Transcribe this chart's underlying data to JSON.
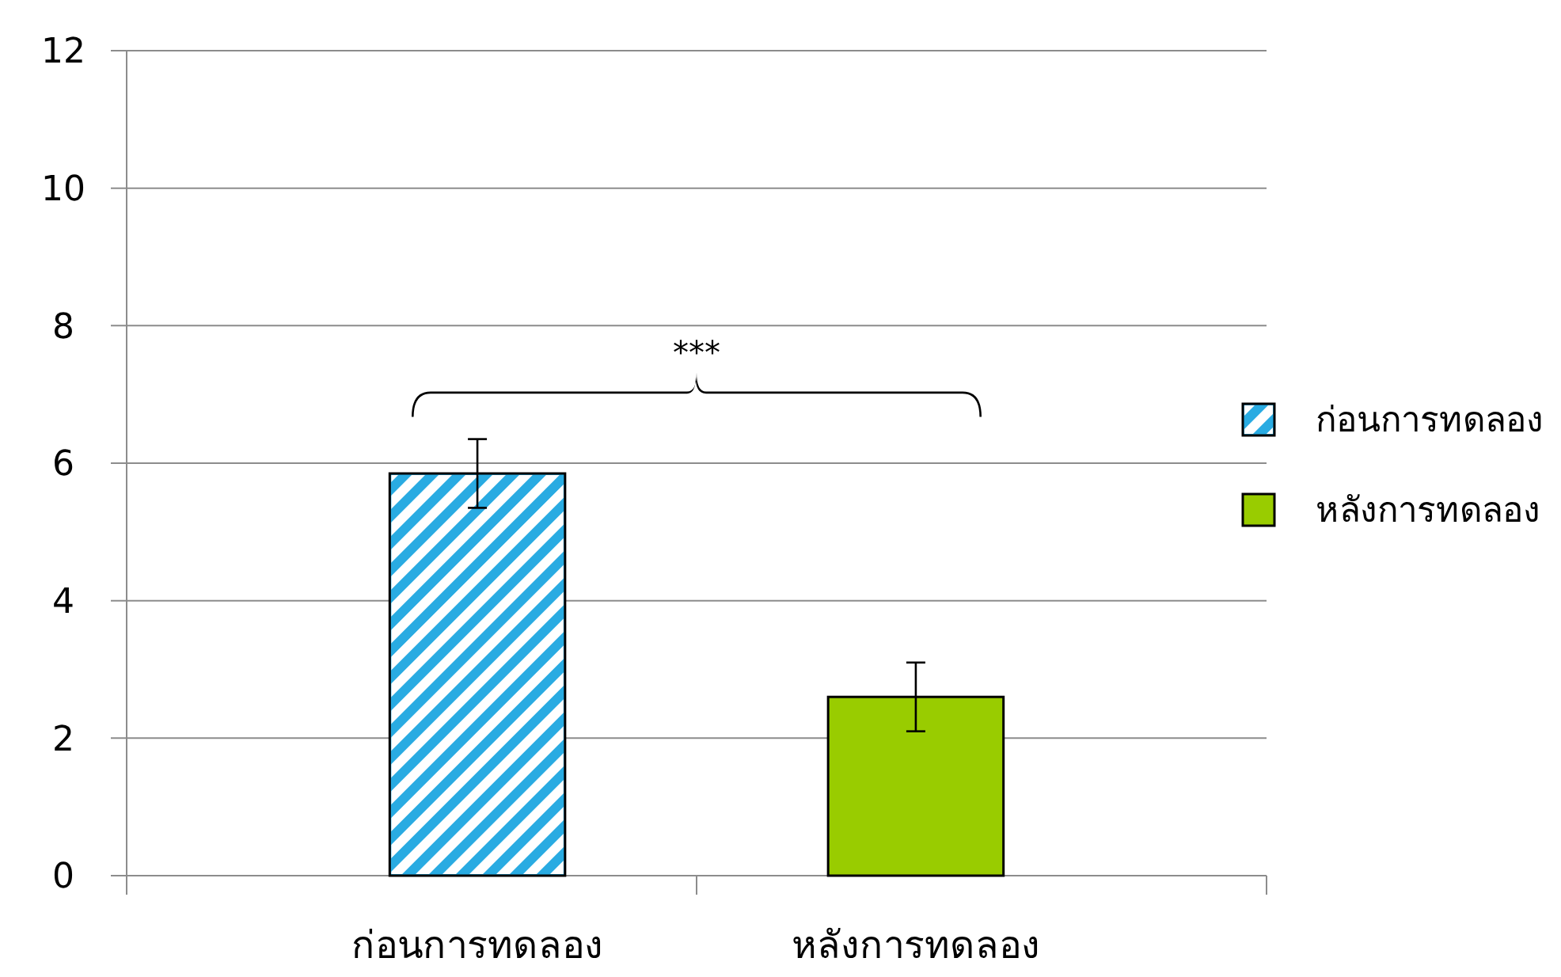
{
  "chart_data": {
    "type": "bar",
    "categories": [
      "ก่อนการทดลอง",
      "หลังการทดลอง"
    ],
    "series": [
      {
        "name": "ก่อนการทดลอง",
        "color": "#29abe2",
        "values": [
          5.85,
          null
        ],
        "errors": [
          0.5,
          null
        ]
      },
      {
        "name": "หลังการทดลอง",
        "color": "#99cc00",
        "values": [
          null,
          2.6
        ],
        "errors": [
          null,
          0.5
        ]
      }
    ],
    "ylim": [
      0,
      12
    ],
    "yticks": [
      0,
      2,
      4,
      6,
      8,
      10,
      12
    ],
    "grid": "y",
    "legend": "right",
    "annotations": [
      "***"
    ]
  }
}
